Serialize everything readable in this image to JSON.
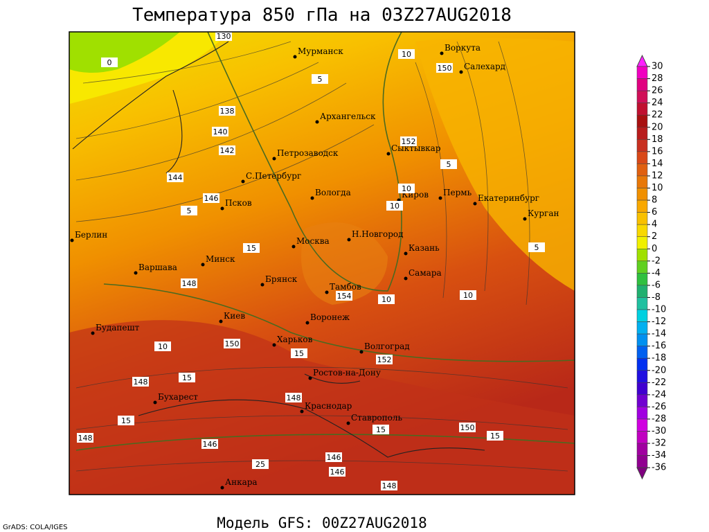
{
  "title": "Температура 850 гПа на 03Z27AUG2018",
  "footer": "Модель GFS: 00Z27AUG2018",
  "credit": "GrADS: COLA/IGES",
  "cities": [
    "Мурманск",
    "Воркута",
    "Салехард",
    "Архангельск",
    "Сыктывкар",
    "Петрозаводск",
    "С.Петербург",
    "Вологда",
    "Киров",
    "Пермь",
    "Екатеринбург",
    "Курган",
    "Псков",
    "Берлин",
    "Москва",
    "Н.Новгород",
    "Казань",
    "Минск",
    "Варшава",
    "Брянск",
    "Самара",
    "Тамбов",
    "Воронеж",
    "Киев",
    "Будапешт",
    "Харьков",
    "Волгоград",
    "Ростов-на-Дону",
    "Бухарест",
    "Краснодар",
    "Ставрополь",
    "Анкара"
  ],
  "contour_labels": [
    130,
    0,
    5,
    138,
    140,
    142,
    144,
    146,
    5,
    15,
    148,
    154,
    10,
    10,
    150,
    15,
    10,
    152,
    148,
    15,
    148,
    15,
    148,
    146,
    25,
    146,
    146,
    148,
    150,
    15,
    15,
    150,
    152,
    5,
    10,
    10,
    5,
    10
  ],
  "colorbar": {
    "levels": [
      30,
      28,
      26,
      24,
      22,
      20,
      18,
      16,
      14,
      12,
      10,
      8,
      6,
      4,
      2,
      0,
      -2,
      -4,
      -6,
      -8,
      -10,
      -12,
      -14,
      -16,
      -18,
      -20,
      -22,
      -24,
      -26,
      -28,
      -30,
      -32,
      -34,
      -36
    ],
    "colors": [
      "#ff20ff",
      "#f000c0",
      "#e00080",
      "#d01058",
      "#c01030",
      "#a81010",
      "#b81c1c",
      "#c83020",
      "#d84818",
      "#e06010",
      "#e87808",
      "#f09000",
      "#f8a800",
      "#f8c000",
      "#f8d800",
      "#f0f000",
      "#a0e000",
      "#60d020",
      "#30c040",
      "#20b070",
      "#20c0a0",
      "#00d0e0",
      "#00b0f0",
      "#0090f0",
      "#0060f0",
      "#0030f0",
      "#2010e0",
      "#4000d0",
      "#7000d0",
      "#a000e0",
      "#d000e0",
      "#c000c0",
      "#a000a0",
      "#900090",
      "#800080"
    ]
  }
}
